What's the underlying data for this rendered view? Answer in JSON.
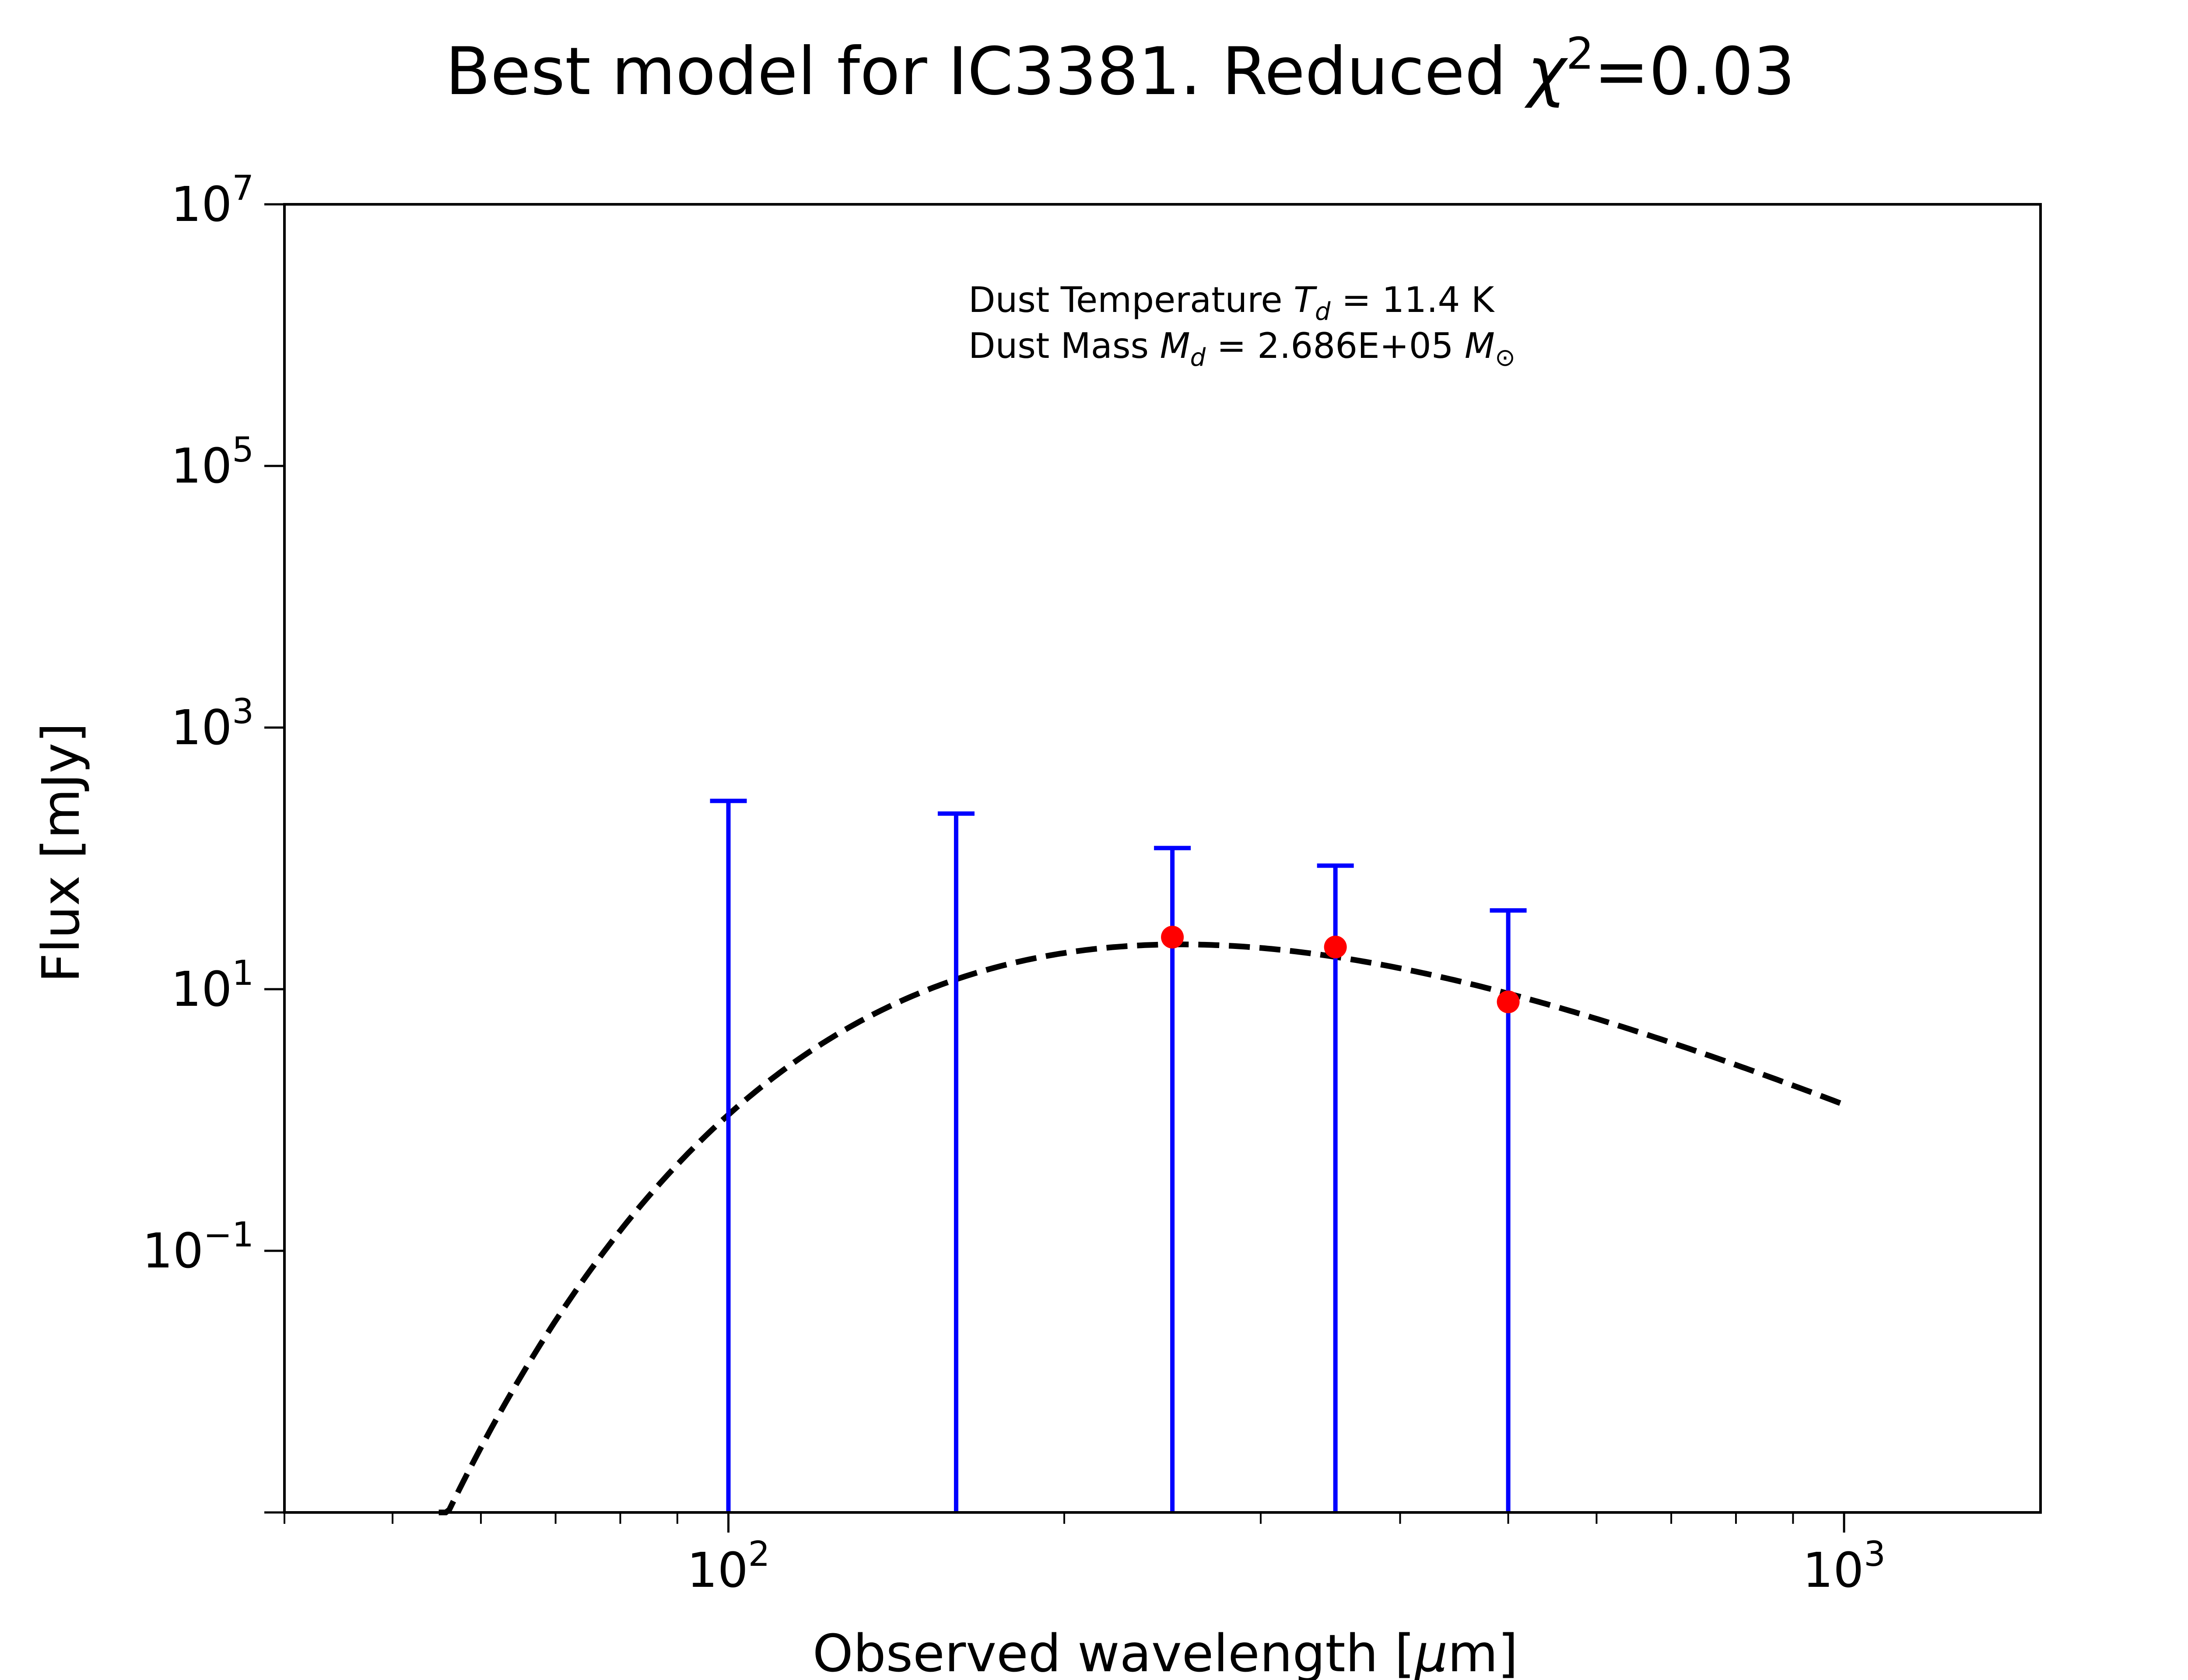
{
  "chart_data": {
    "type": "scatter",
    "title": {
      "prefix": "Best model for IC3381. Reduced ",
      "chi_symbol": "χ",
      "chi_exponent": "2",
      "suffix": "=0.03"
    },
    "xlabel": {
      "prefix": "Observed wavelength [",
      "mu": "μ",
      "suffix": "m]"
    },
    "ylabel": "Flux [mJy]",
    "xscale": "log",
    "yscale": "log",
    "xlim": [
      40,
      1500
    ],
    "ylim": [
      0.001,
      10000000
    ],
    "grid": false,
    "legend": "none",
    "x_ticks": [
      {
        "value": 100,
        "base": "10",
        "exp": "2"
      },
      {
        "value": 1000,
        "base": "10",
        "exp": "3"
      }
    ],
    "y_ticks": [
      {
        "value": 0.1,
        "base": "10",
        "exp": "−1"
      },
      {
        "value": 10,
        "base": "10",
        "exp": "1"
      },
      {
        "value": 1000,
        "base": "10",
        "exp": "3"
      },
      {
        "value": 100000,
        "base": "10",
        "exp": "5"
      },
      {
        "value": 10000000,
        "base": "10",
        "exp": "7"
      }
    ],
    "annotation": {
      "line1_prefix": "Dust Temperature ",
      "line1_var": "T",
      "line1_sub": "d",
      "line1_suffix": " = 11.4 K",
      "line2_prefix": "Dust Mass ",
      "line2_var": "M",
      "line2_sub": "d",
      "line2_mid": " = 2.686E+05 ",
      "line2_unit_var": "M",
      "line2_unit_sub": "⊙"
    },
    "error_bars": {
      "color": "#0000ff",
      "upper_limits": [
        {
          "x": 100,
          "y_top": 275
        },
        {
          "x": 160,
          "y_top": 220
        },
        {
          "x": 250,
          "y_top": 120
        },
        {
          "x": 350,
          "y_top": 88
        },
        {
          "x": 500,
          "y_top": 40
        }
      ]
    },
    "points": {
      "color": "#ff0000",
      "x": [
        250,
        350,
        500
      ],
      "y": [
        25,
        21,
        8
      ]
    },
    "model": {
      "style": "dashed",
      "color": "#000000",
      "dust_temperature_K": 11.4,
      "x_range": [
        55,
        1000
      ],
      "peak_flux": 22
    }
  }
}
